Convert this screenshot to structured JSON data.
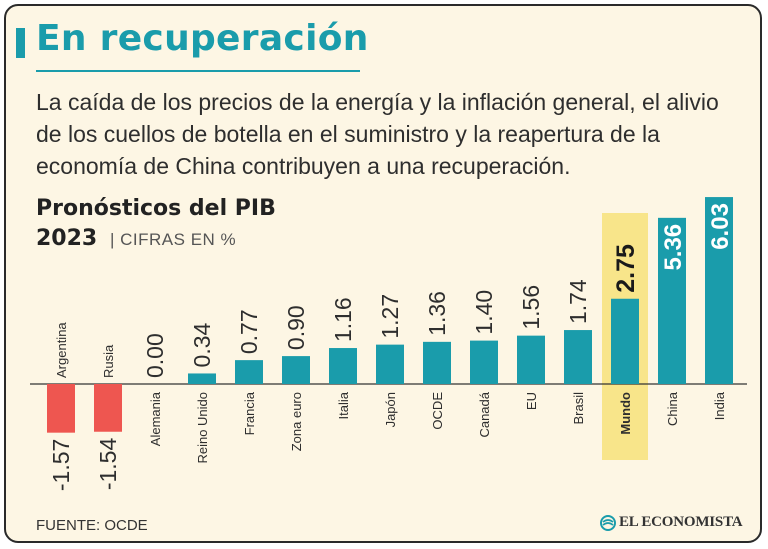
{
  "header": {
    "headline": "En recuperación",
    "subtitle": "La caída de los precios de la energía y la inflación general, el alivio de los cuellos de botella en el suministro y la reapertura de la economía de China contribuyen a una recuperación."
  },
  "chart_data": {
    "type": "bar",
    "title": "Pronósticos del PIB",
    "year": "2023",
    "units": "| CIFRAS EN %",
    "categories": [
      "Argentina",
      "Rusia",
      "Alemania",
      "Reino Unido",
      "Francia",
      "Zona euro",
      "Italia",
      "Japón",
      "OCDE",
      "Canadá",
      "EU",
      "Brasil",
      "Mundo",
      "China",
      "India"
    ],
    "values": [
      -1.57,
      -1.54,
      0.0,
      0.34,
      0.77,
      0.9,
      1.16,
      1.27,
      1.36,
      1.4,
      1.56,
      1.74,
      2.75,
      5.36,
      6.03
    ],
    "value_labels": [
      "-1.57",
      "-1.54",
      "0.00",
      "0.34",
      "0.77",
      "0.90",
      "1.16",
      "1.27",
      "1.36",
      "1.40",
      "1.56",
      "1.74",
      "2.75",
      "5.36",
      "6.03"
    ],
    "highlight": "Mundo",
    "colors": {
      "positive": "#1a9cab",
      "negative": "#ee5650",
      "highlight_bg": "#f8e58a",
      "highlight_bar": "#1a9cab",
      "axis": "#333333",
      "text": "#2e2e2e",
      "inverse_text": "#ffffff"
    },
    "legend": "none",
    "grid": false
  },
  "footer": {
    "source": "FUENTE:  OCDE",
    "brand": "EL ECONOMISTA"
  }
}
